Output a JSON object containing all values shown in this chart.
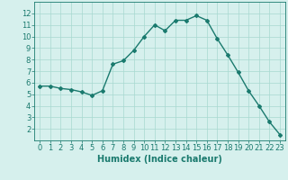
{
  "x": [
    0,
    1,
    2,
    3,
    4,
    5,
    6,
    7,
    8,
    9,
    10,
    11,
    12,
    13,
    14,
    15,
    16,
    17,
    18,
    19,
    20,
    21,
    22,
    23
  ],
  "y": [
    5.7,
    5.7,
    5.5,
    5.4,
    5.2,
    4.9,
    5.3,
    7.6,
    7.9,
    8.8,
    10.0,
    11.0,
    10.5,
    11.4,
    11.4,
    11.8,
    11.4,
    9.8,
    8.4,
    6.9,
    5.3,
    4.0,
    2.6,
    1.5
  ],
  "line_color": "#1a7a6e",
  "marker": "D",
  "marker_size": 2.0,
  "bg_color": "#d6f0ed",
  "grid_color": "#a8d8d0",
  "xlabel": "Humidex (Indice chaleur)",
  "xlabel_fontsize": 7,
  "xlim": [
    -0.5,
    23.5
  ],
  "ylim": [
    1,
    13
  ],
  "yticks": [
    2,
    3,
    4,
    5,
    6,
    7,
    8,
    9,
    10,
    11,
    12
  ],
  "xticks": [
    0,
    1,
    2,
    3,
    4,
    5,
    6,
    7,
    8,
    9,
    10,
    11,
    12,
    13,
    14,
    15,
    16,
    17,
    18,
    19,
    20,
    21,
    22,
    23
  ],
  "tick_color": "#1a7a6e",
  "tick_fontsize": 6,
  "line_width": 1.0
}
